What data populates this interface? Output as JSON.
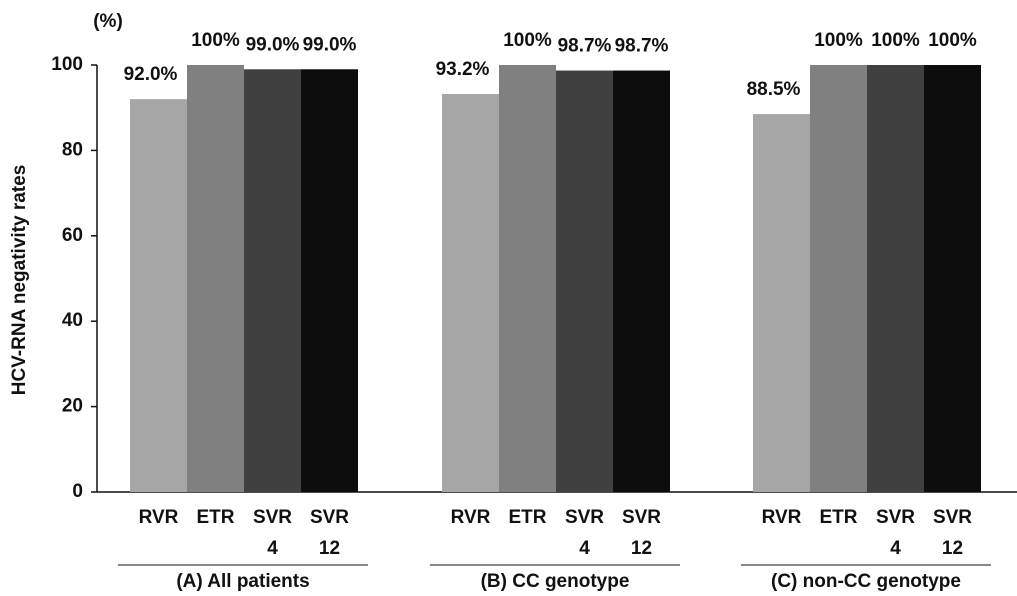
{
  "chart_data": {
    "type": "bar",
    "y_label": "HCV-RNA negativity rates",
    "y_unit": "(%)",
    "categories": [
      "(A) All patients",
      "(B) CC genotype",
      "(C) non-CC genotype"
    ],
    "series": [
      {
        "name": "RVR",
        "color": "#a6a6a6",
        "values": [
          92.0,
          93.2,
          88.5
        ],
        "value_labels": [
          "92.0%",
          "93.2%",
          "88.5%"
        ]
      },
      {
        "name": "ETR",
        "color": "#808080",
        "values": [
          100,
          100,
          100
        ],
        "value_labels": [
          "100%",
          "100%",
          "100%"
        ]
      },
      {
        "name": "SVR 4",
        "color": "#404040",
        "values": [
          99.0,
          98.7,
          100
        ],
        "value_labels": [
          "99.0%",
          "98.7%",
          "100%"
        ]
      },
      {
        "name": "SVR 12",
        "color": "#0d0d0d",
        "values": [
          99.0,
          98.7,
          100
        ],
        "value_labels": [
          "99.0%",
          "98.7%",
          "100%"
        ]
      }
    ],
    "ylim": [
      0,
      100
    ],
    "yticks": [
      0,
      20,
      40,
      60,
      80,
      100
    ]
  }
}
